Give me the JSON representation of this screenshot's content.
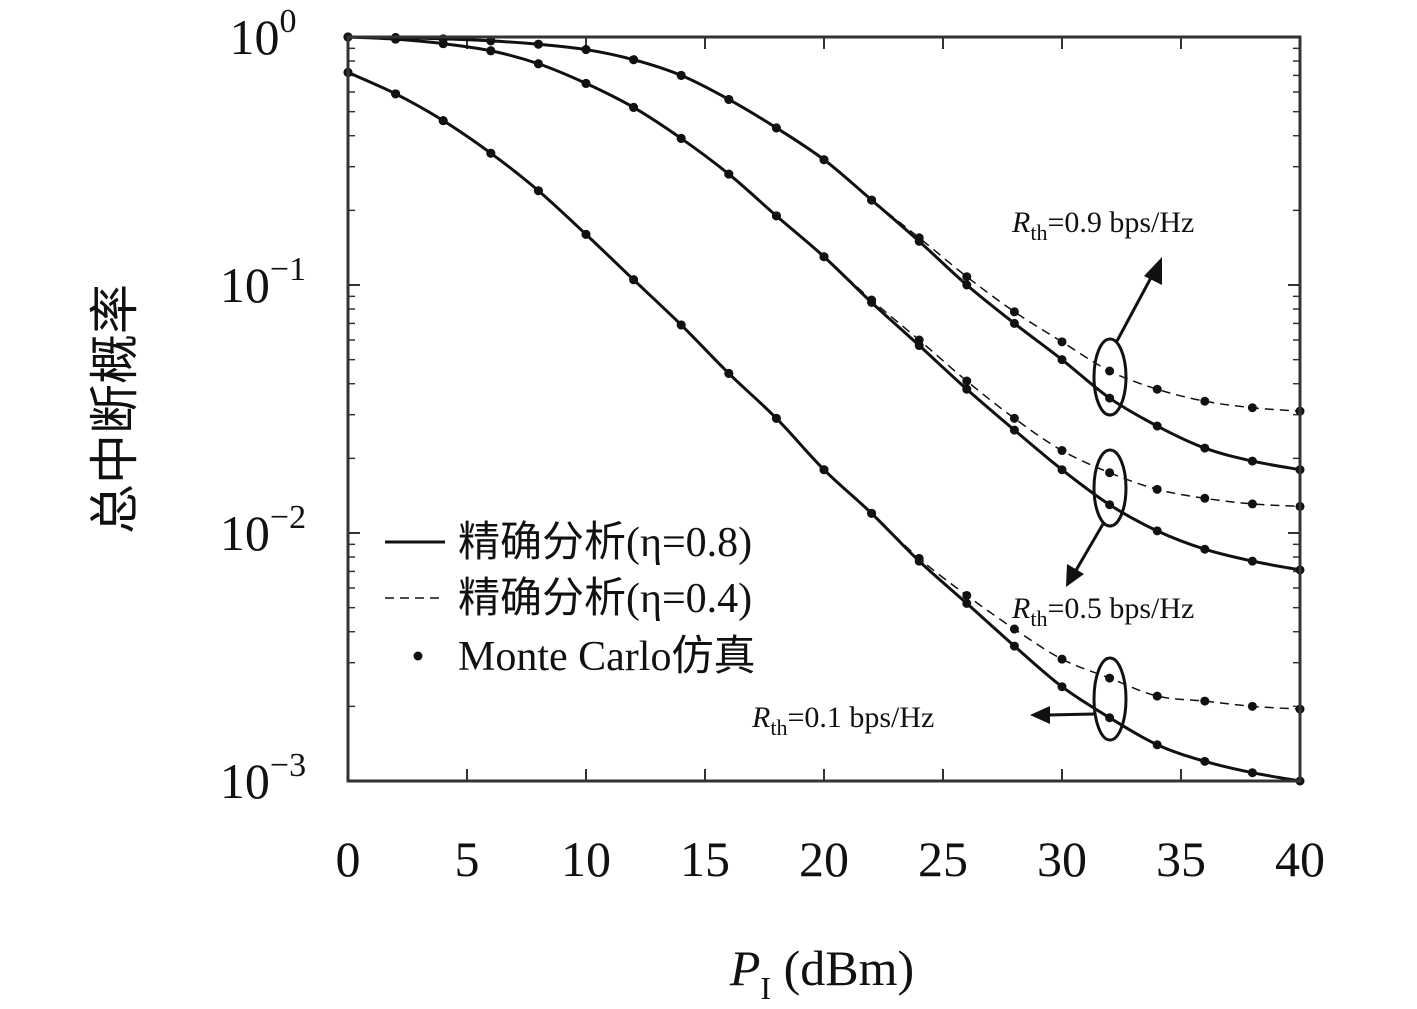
{
  "chart_data": {
    "type": "line",
    "xlabel_main": "P",
    "xlabel_sub": "I",
    "xlabel_unit": " (dBm)",
    "ylabel": "总中断概率",
    "xlim": [
      0,
      40
    ],
    "ylim": [
      0.001,
      1
    ],
    "yscale": "log",
    "xticks": [
      0,
      5,
      10,
      15,
      20,
      25,
      30,
      35,
      40
    ],
    "xtick_labels": [
      "0",
      "5",
      "10",
      "15",
      "20",
      "25",
      "30",
      "35",
      "40"
    ],
    "yticks": [
      {
        "value": 1,
        "base": "10",
        "exp": "0"
      },
      {
        "value": 0.1,
        "base": "10",
        "exp": "−1"
      },
      {
        "value": 0.01,
        "base": "10",
        "exp": "−2"
      },
      {
        "value": 0.001,
        "base": "10",
        "exp": "−3"
      }
    ],
    "legend": {
      "placement": "lower-left",
      "entries": [
        {
          "label": "精确分析(η=0.8)",
          "style": "solid"
        },
        {
          "label": "精确分析(η=0.4)",
          "style": "dashed"
        },
        {
          "label": "Monte Carlo仿真",
          "style": "dot"
        }
      ]
    },
    "x": [
      0,
      2,
      4,
      6,
      8,
      10,
      12,
      14,
      16,
      18,
      20,
      22,
      24,
      26,
      28,
      30,
      32,
      34,
      36,
      38,
      40
    ],
    "series": [
      {
        "group": "R_th=0.9",
        "eta": "0.8",
        "style": "solid",
        "values": [
          1.0,
          0.995,
          0.983,
          0.965,
          0.935,
          0.89,
          0.81,
          0.7,
          0.56,
          0.43,
          0.32,
          0.22,
          0.15,
          0.1,
          0.07,
          0.05,
          0.035,
          0.027,
          0.022,
          0.0195,
          0.018
        ]
      },
      {
        "group": "R_th=0.9",
        "eta": "0.4",
        "style": "dashed",
        "values": [
          1.0,
          0.995,
          0.983,
          0.965,
          0.935,
          0.89,
          0.81,
          0.7,
          0.56,
          0.43,
          0.32,
          0.22,
          0.155,
          0.108,
          0.078,
          0.059,
          0.045,
          0.038,
          0.034,
          0.032,
          0.031
        ]
      },
      {
        "group": "R_th=0.5",
        "eta": "0.8",
        "style": "solid",
        "values": [
          1.0,
          0.98,
          0.94,
          0.88,
          0.78,
          0.65,
          0.52,
          0.39,
          0.28,
          0.19,
          0.13,
          0.085,
          0.057,
          0.038,
          0.026,
          0.018,
          0.013,
          0.0102,
          0.0086,
          0.0077,
          0.0071
        ]
      },
      {
        "group": "R_th=0.5",
        "eta": "0.4",
        "style": "dashed",
        "values": [
          1.0,
          0.98,
          0.94,
          0.88,
          0.78,
          0.65,
          0.52,
          0.39,
          0.28,
          0.19,
          0.13,
          0.087,
          0.06,
          0.041,
          0.029,
          0.0215,
          0.0175,
          0.015,
          0.0138,
          0.0131,
          0.0128
        ]
      },
      {
        "group": "R_th=0.1",
        "eta": "0.8",
        "style": "solid",
        "values": [
          0.72,
          0.59,
          0.46,
          0.34,
          0.24,
          0.16,
          0.105,
          0.069,
          0.044,
          0.029,
          0.018,
          0.012,
          0.0077,
          0.0052,
          0.0035,
          0.0024,
          0.0018,
          0.0014,
          0.0012,
          0.00108,
          0.001
        ]
      },
      {
        "group": "R_th=0.1",
        "eta": "0.4",
        "style": "dashed",
        "values": [
          0.72,
          0.59,
          0.46,
          0.34,
          0.24,
          0.16,
          0.105,
          0.069,
          0.044,
          0.029,
          0.018,
          0.012,
          0.0079,
          0.0056,
          0.0041,
          0.0031,
          0.0026,
          0.0022,
          0.0021,
          0.002,
          0.00195
        ]
      }
    ],
    "annotations": [
      {
        "R": "R",
        "sub": "th",
        "rest": "=0.9 bps/Hz"
      },
      {
        "R": "R",
        "sub": "th",
        "rest": "=0.5 bps/Hz"
      },
      {
        "R": "R",
        "sub": "th",
        "rest": "=0.1 bps/Hz"
      }
    ]
  }
}
